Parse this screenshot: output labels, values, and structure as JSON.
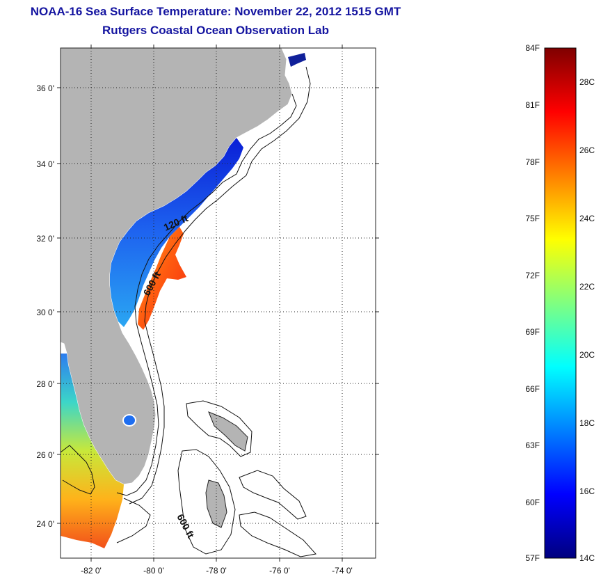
{
  "header": {
    "title": "NOAA-16 Sea Surface Temperature:  November 22, 2012 1515 GMT",
    "subtitle": "Rutgers Coastal Ocean Observation Lab"
  },
  "map": {
    "lat_labels": [
      "36 0'",
      "34 0'",
      "32 0'",
      "30 0'",
      "28 0'",
      "26 0'",
      "24 0'"
    ],
    "lon_labels": [
      "-82 0'",
      "-80 0'",
      "-78 0'",
      "-76 0'",
      "-74 0'"
    ],
    "depth_labels": [
      "120 ft",
      "600 ft",
      "600 ft"
    ],
    "land_color": "#b4b4b4",
    "ocean_color": "#ffffff",
    "gridline_style": "dotted"
  },
  "colorbar": {
    "fahrenheit_labels": [
      "84F",
      "81F",
      "78F",
      "75F",
      "72F",
      "69F",
      "66F",
      "63F",
      "60F",
      "57F"
    ],
    "celsius_labels": [
      "28C",
      "26C",
      "24C",
      "22C",
      "20C",
      "18C",
      "16C",
      "14C"
    ],
    "colors": [
      "#00007f",
      "#0000ff",
      "#0080ff",
      "#00ffff",
      "#80ff80",
      "#ffff00",
      "#ff8000",
      "#ff0000",
      "#7f0000"
    ]
  }
}
